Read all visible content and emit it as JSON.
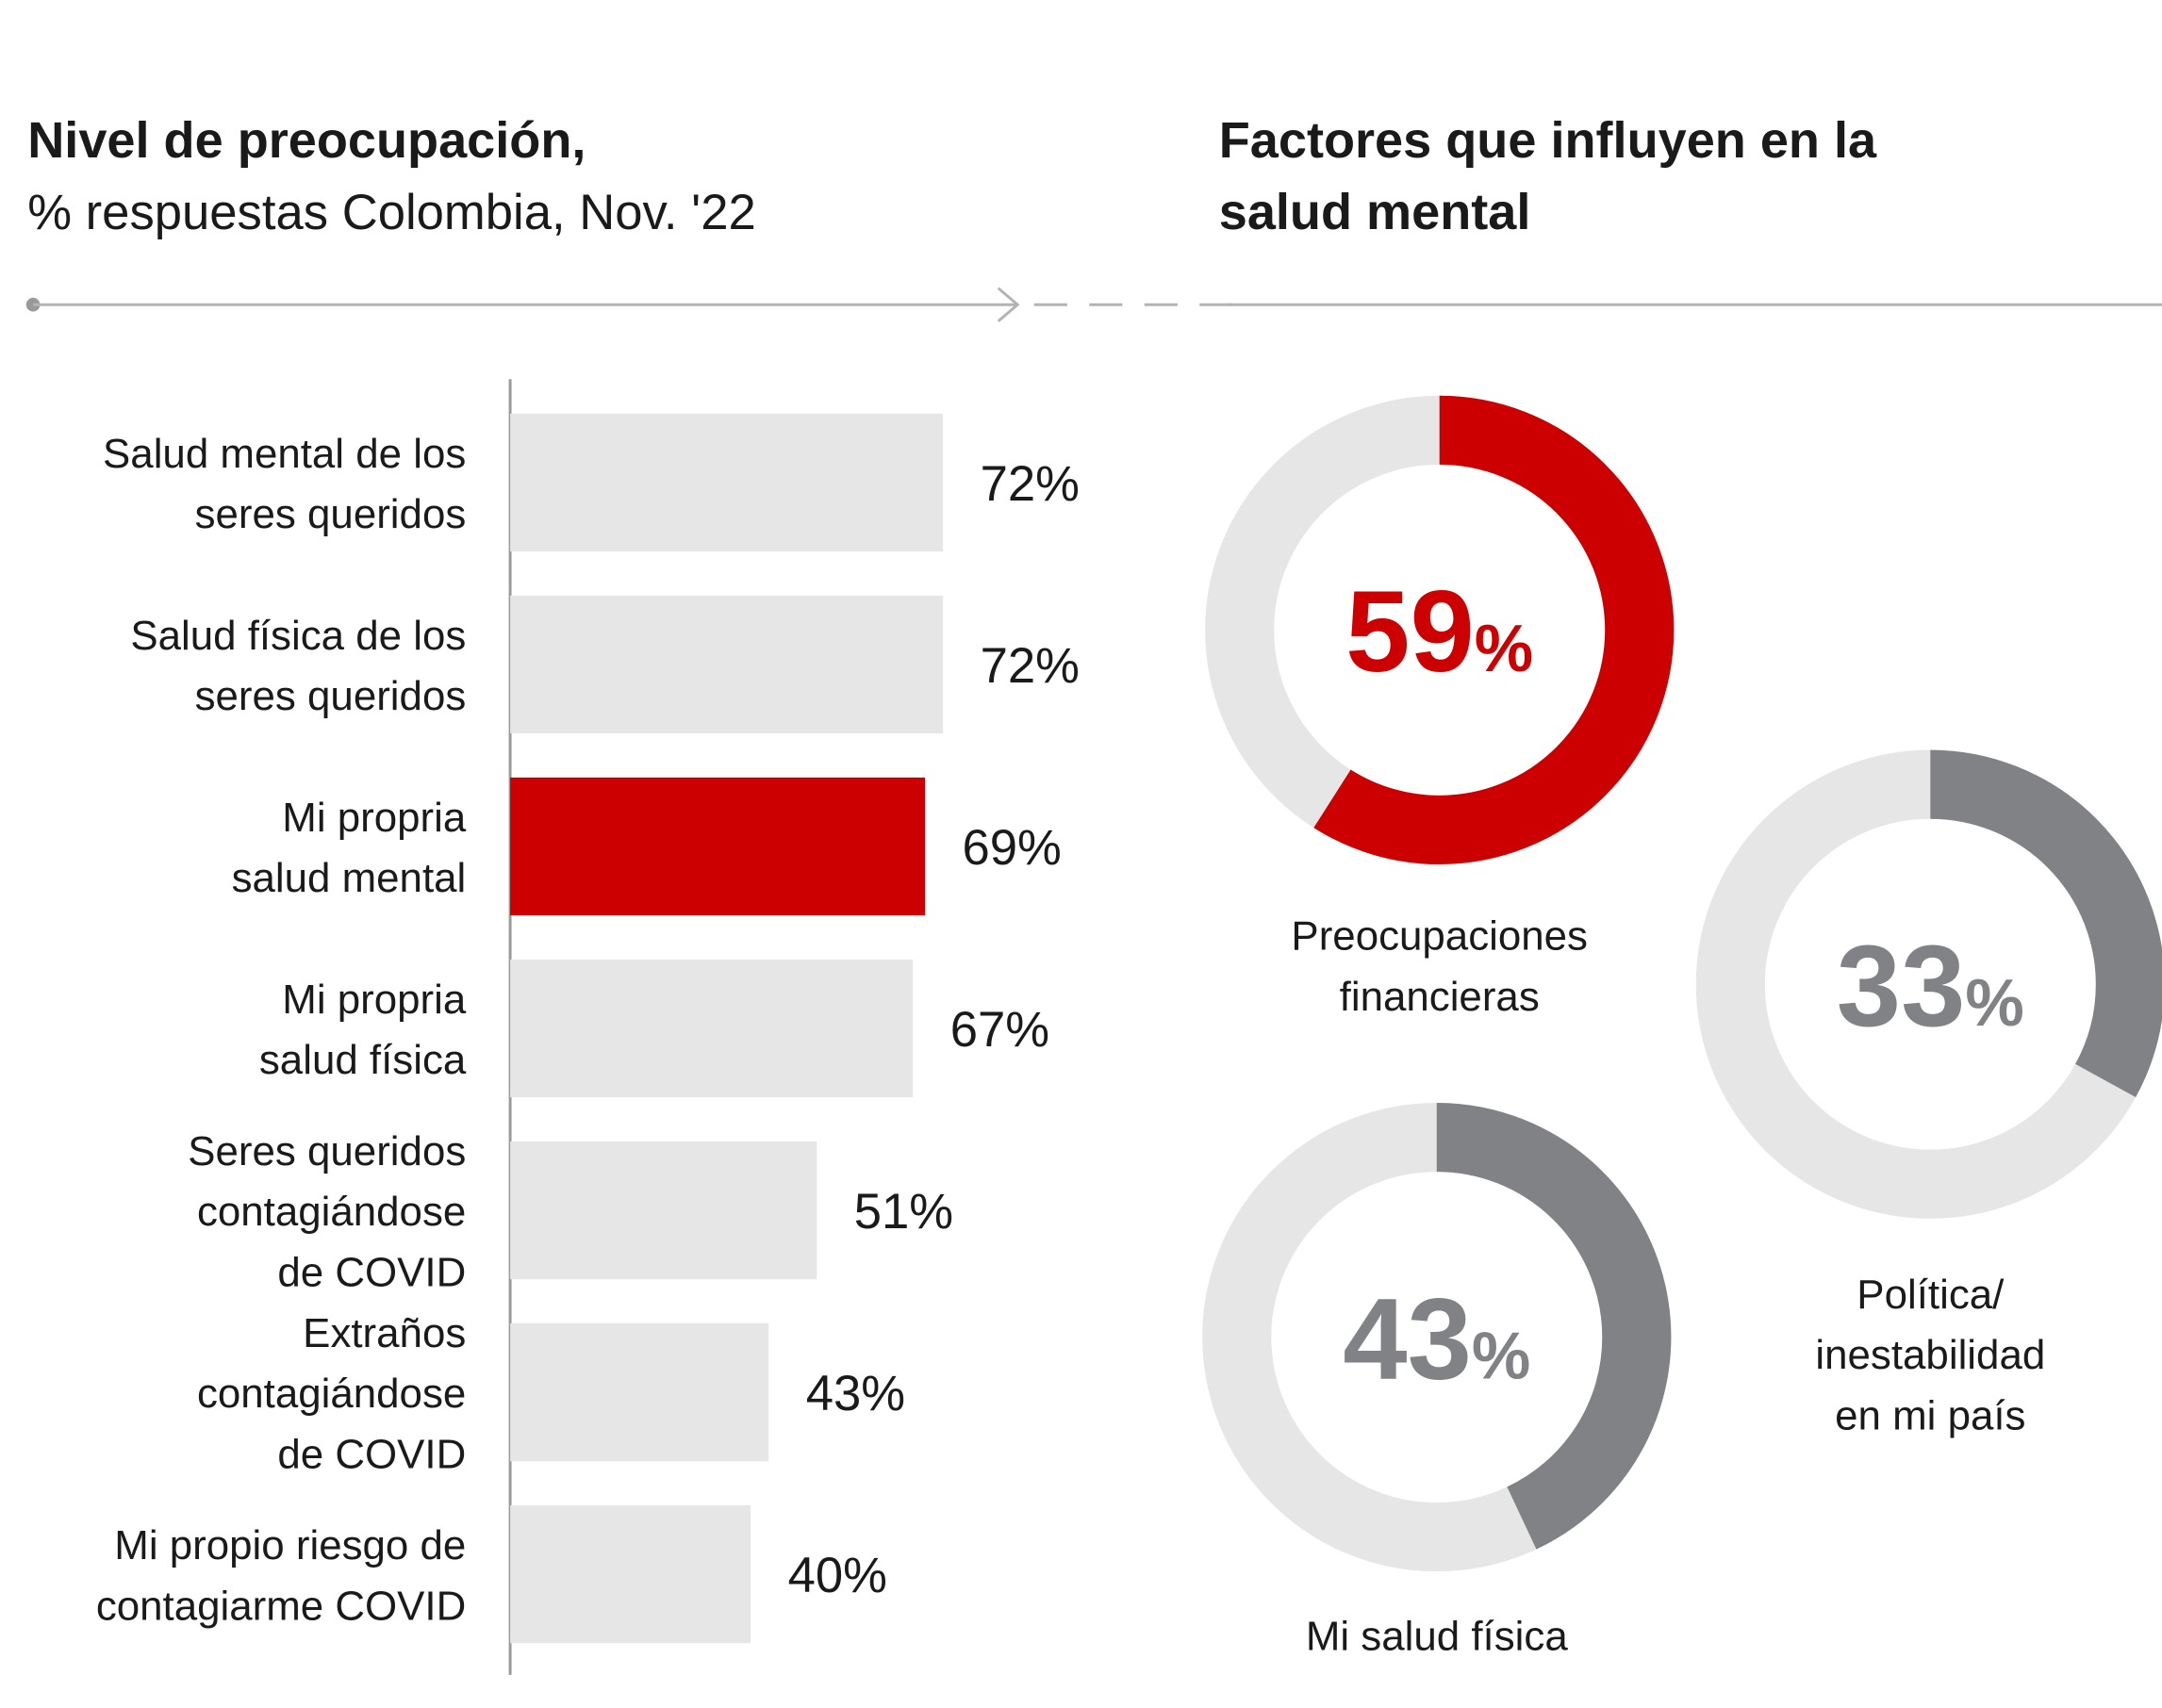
{
  "chart_data": [
    {
      "type": "bar",
      "title": "Nivel de preocupación,",
      "subtitle": "% respuestas Colombia, Nov. '22",
      "categories": [
        "Salud mental de los\nseres queridos",
        "Salud física de los\nseres queridos",
        "Mi propria\nsalud mental",
        "Mi propria\nsalud física",
        "Seres queridos\ncontagiándose\nde COVID",
        "Extraños\ncontagiándose\nde COVID",
        "Mi propio riesgo de\ncontagiarme COVID"
      ],
      "values": [
        72,
        72,
        69,
        67,
        51,
        43,
        40
      ],
      "value_labels": [
        "72%",
        "72%",
        "69%",
        "67%",
        "51%",
        "43%",
        "40%"
      ],
      "colors": [
        "#e6e6e6",
        "#e6e6e6",
        "#cc0000",
        "#e6e6e6",
        "#e6e6e6",
        "#e6e6e6",
        "#e6e6e6"
      ],
      "xlim": [
        0,
        100
      ]
    },
    {
      "type": "donut",
      "title": "Factores que influyen en la\nsalud mental",
      "unit": "%",
      "categories": [
        "Preocupaciones\nfinancieras",
        "Política/\ninestabilidad\nen mi país",
        "Mi salud física"
      ],
      "values": [
        59,
        33,
        43
      ],
      "colors": [
        "#cc0000",
        "#808285",
        "#808285"
      ],
      "track_color": "#e6e6e6",
      "ylim": [
        0,
        100
      ]
    }
  ]
}
